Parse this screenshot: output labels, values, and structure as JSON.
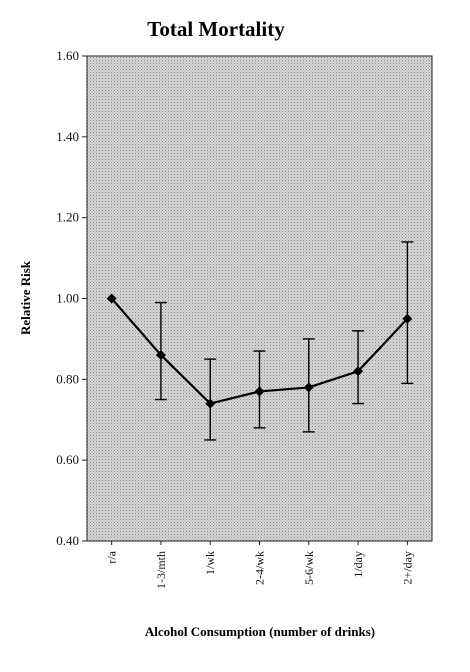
{
  "chart_data": {
    "type": "line",
    "title": "Total Mortality",
    "xlabel": "Alcohol Consumption (number of drinks)",
    "ylabel": "Relative Risk",
    "ylim": [
      0.4,
      1.6
    ],
    "yticks": [
      "0.40",
      "0.60",
      "0.80",
      "1.00",
      "1.20",
      "1.40",
      "1.60"
    ],
    "grid": false,
    "categories": [
      "r/a",
      "1-3/mth",
      "1/wk",
      "2-4/wk",
      "5-6/wk",
      "1/day",
      "2+/day"
    ],
    "series": [
      {
        "values": [
          1.0,
          0.86,
          0.74,
          0.77,
          0.78,
          0.82,
          0.95
        ],
        "ci_lower": [
          null,
          0.75,
          0.65,
          0.68,
          0.67,
          0.74,
          0.79
        ],
        "ci_upper": [
          null,
          0.99,
          0.85,
          0.87,
          0.9,
          0.92,
          1.14
        ]
      }
    ],
    "colors": {
      "plot_background": "#c8c8c8",
      "line": "#000000",
      "marker": "#000000"
    }
  }
}
